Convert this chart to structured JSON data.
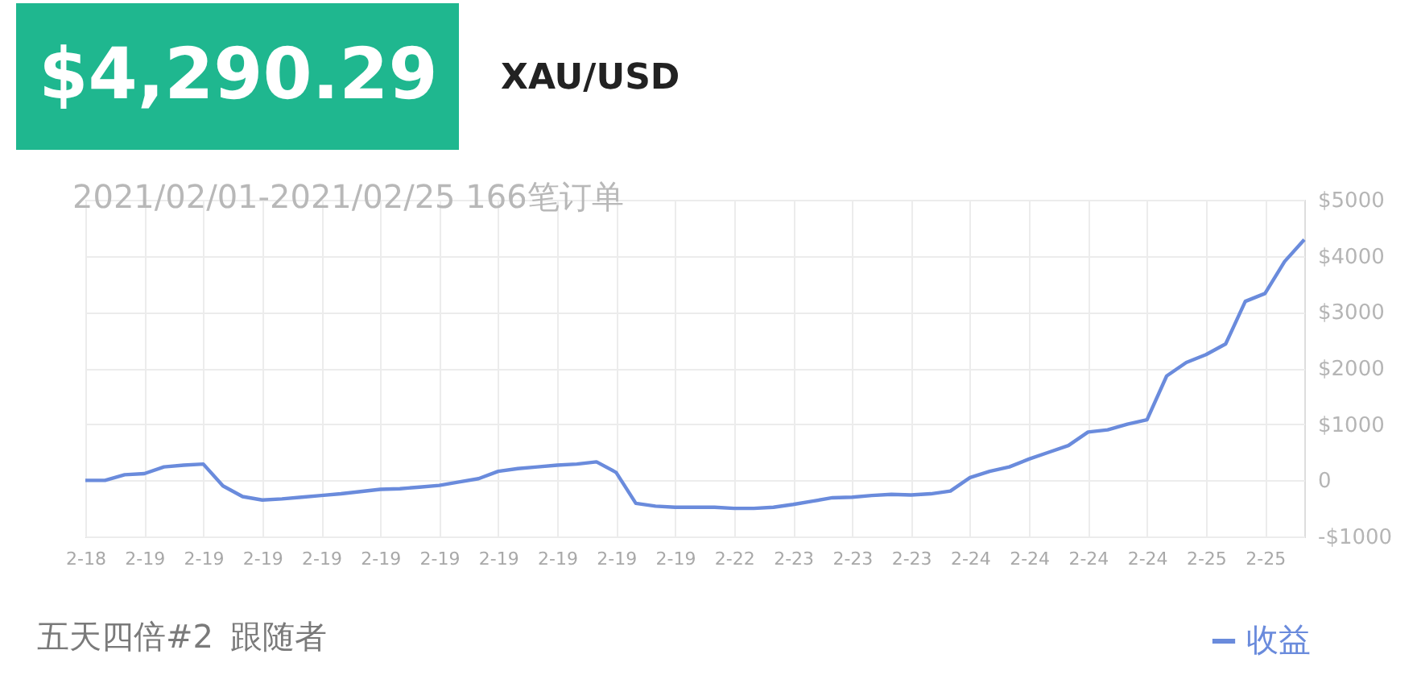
{
  "chart_data": {
    "type": "line",
    "title": "$4,290.29",
    "subtitle": "XAU/USD",
    "annotations": [
      "2021/02/01-2021/02/25 166笔订单",
      "五天四倍#2",
      "跟随者"
    ],
    "categories": [
      "2-18",
      null,
      null,
      "2-19",
      null,
      null,
      "2-19",
      null,
      null,
      "2-19",
      null,
      null,
      "2-19",
      null,
      null,
      "2-19",
      null,
      null,
      "2-19",
      null,
      null,
      "2-19",
      null,
      null,
      "2-19",
      null,
      null,
      "2-19",
      null,
      null,
      "2-19",
      null,
      null,
      "2-22",
      null,
      null,
      "2-23",
      null,
      null,
      "2-23",
      null,
      null,
      "2-23",
      null,
      null,
      "2-24",
      null,
      null,
      "2-24",
      null,
      null,
      "2-24",
      null,
      null,
      "2-24",
      null,
      null,
      "2-25",
      null,
      null,
      "2-25",
      null,
      null
    ],
    "series": [
      {
        "name": "收益",
        "color": "#6a8bdc",
        "values": [
          0,
          0,
          100,
          120,
          240,
          270,
          290,
          -100,
          -290,
          -350,
          -330,
          -300,
          -270,
          -240,
          -200,
          -160,
          -150,
          -120,
          -90,
          -30,
          30,
          160,
          210,
          240,
          270,
          290,
          330,
          140,
          -410,
          -460,
          -480,
          -480,
          -480,
          -500,
          -500,
          -480,
          -430,
          -370,
          -310,
          -300,
          -270,
          -250,
          -260,
          -240,
          -190,
          50,
          160,
          240,
          380,
          500,
          620,
          860,
          900,
          1000,
          1080,
          1860,
          2100,
          2240,
          2430,
          3190,
          3330,
          3900,
          4290
        ]
      }
    ],
    "ylim": [
      -1000,
      5000
    ],
    "yticks": [
      {
        "value": -1000,
        "label": "-$1000"
      },
      0,
      {
        "value": 1000,
        "label": "$1000"
      },
      {
        "value": 2000,
        "label": "$2000"
      },
      {
        "value": 3000,
        "label": "$3000"
      },
      {
        "value": 4000,
        "label": "$4000"
      },
      {
        "value": 5000,
        "label": "$5000"
      }
    ],
    "grid": true,
    "legend": "bottom right",
    "line_style": "solid"
  }
}
